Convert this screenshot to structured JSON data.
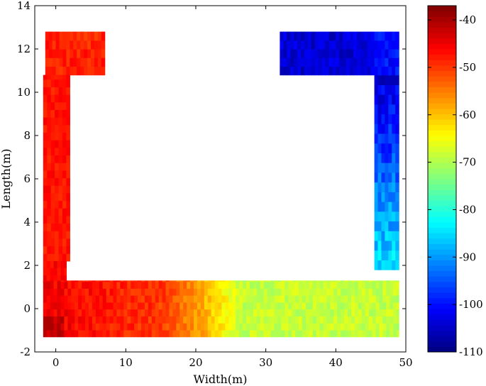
{
  "chart_data": {
    "type": "heatmap",
    "title": "",
    "xlabel": "Width(m)",
    "ylabel": "Length(m)",
    "xlim": [
      -3,
      50
    ],
    "ylim": [
      -2,
      14
    ],
    "xticks": [
      0,
      10,
      20,
      30,
      40,
      50
    ],
    "yticks": [
      -2,
      0,
      2,
      4,
      6,
      8,
      10,
      12,
      14
    ],
    "grid": false,
    "colormap": "jet",
    "colorbar": {
      "range": [
        -110,
        -37
      ],
      "ticks": [
        -40,
        -50,
        -60,
        -70,
        -80,
        -90,
        -100,
        -110
      ]
    },
    "regions": [
      {
        "name": "top-left corridor",
        "x": [
          -1.5,
          7
        ],
        "y": [
          10.8,
          12.8
        ],
        "value_range": [
          -52,
          -46
        ]
      },
      {
        "name": "left corridor",
        "x": [
          -1.8,
          2
        ],
        "y": [
          2.2,
          10.8
        ],
        "value_range": [
          -50,
          -45
        ]
      },
      {
        "name": "bottom-left corner",
        "x": [
          -1.8,
          1.5
        ],
        "y": [
          1.2,
          2.2
        ],
        "value_range": [
          -48,
          -43
        ]
      },
      {
        "name": "bottom corridor",
        "x": [
          -1.8,
          49
        ],
        "y": [
          -1.3,
          1.3
        ],
        "value_range": [
          -72,
          -40
        ],
        "gradient": "red at x=-2, orange near x=15, yellow near x=22, green beyond x=26"
      },
      {
        "name": "right corridor",
        "x": [
          45.5,
          49
        ],
        "y": [
          1.8,
          10.8
        ],
        "value_range": [
          -108,
          -82
        ],
        "gradient": "green/cyan at y=2, blue at y=10"
      },
      {
        "name": "top-right corridor",
        "x": [
          32,
          49
        ],
        "y": [
          10.8,
          12.8
        ],
        "value_range": [
          -110,
          -95
        ]
      }
    ]
  }
}
